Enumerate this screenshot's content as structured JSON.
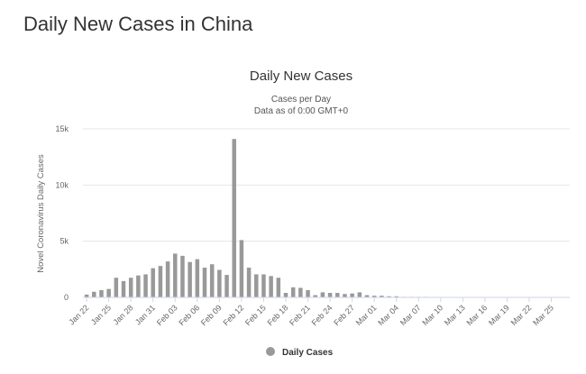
{
  "page": {
    "heading": "Daily New Cases in China"
  },
  "chart_data": {
    "type": "bar",
    "title": "Daily New Cases",
    "subtitle": [
      "Cases per Day",
      "Data as of 0:00 GMT+0"
    ],
    "xlabel": "",
    "ylabel": "Novel Coronavirus Daily Cases",
    "ylim": [
      0,
      15000
    ],
    "yticks": [
      0,
      5000,
      10000,
      15000
    ],
    "ytick_labels": [
      "0",
      "5k",
      "10k",
      "15k"
    ],
    "grid": true,
    "legend": {
      "placement": "bottom-center"
    },
    "x_tick_labels": [
      "Jan 22",
      "Jan 25",
      "Jan 28",
      "Jan 31",
      "Feb 03",
      "Feb 06",
      "Feb 09",
      "Feb 12",
      "Feb 15",
      "Feb 18",
      "Feb 21",
      "Feb 24",
      "Feb 27",
      "Mar 01",
      "Mar 04",
      "Mar 07",
      "Mar 10",
      "Mar 13",
      "Mar 16",
      "Mar 19",
      "Mar 22",
      "Mar 25"
    ],
    "categories": [
      "Jan 22",
      "Jan 23",
      "Jan 24",
      "Jan 25",
      "Jan 26",
      "Jan 27",
      "Jan 28",
      "Jan 29",
      "Jan 30",
      "Jan 31",
      "Feb 01",
      "Feb 02",
      "Feb 03",
      "Feb 04",
      "Feb 05",
      "Feb 06",
      "Feb 07",
      "Feb 08",
      "Feb 09",
      "Feb 10",
      "Feb 11",
      "Feb 12",
      "Feb 13",
      "Feb 14",
      "Feb 15",
      "Feb 16",
      "Feb 17",
      "Feb 18",
      "Feb 19",
      "Feb 20",
      "Feb 21",
      "Feb 22",
      "Feb 23",
      "Feb 24",
      "Feb 25",
      "Feb 26",
      "Feb 27",
      "Feb 28",
      "Feb 29",
      "Mar 01",
      "Mar 02",
      "Mar 03",
      "Mar 04",
      "Mar 05",
      "Mar 06",
      "Mar 07",
      "Mar 08",
      "Mar 09",
      "Mar 10",
      "Mar 11",
      "Mar 12",
      "Mar 13",
      "Mar 14",
      "Mar 15",
      "Mar 16",
      "Mar 17",
      "Mar 18",
      "Mar 19",
      "Mar 20",
      "Mar 21",
      "Mar 22",
      "Mar 23",
      "Mar 24",
      "Mar 25",
      "Mar 26",
      "Mar 27"
    ],
    "series": [
      {
        "name": "Daily Cases",
        "color": "#999999",
        "values": [
          250,
          500,
          650,
          750,
          1750,
          1450,
          1750,
          1950,
          2050,
          2600,
          2800,
          3200,
          3900,
          3700,
          3150,
          3400,
          2650,
          2950,
          2450,
          2000,
          14100,
          5100,
          2650,
          2050,
          2050,
          1900,
          1750,
          400,
          900,
          850,
          650,
          200,
          450,
          400,
          400,
          300,
          350,
          450,
          200,
          150,
          150,
          100,
          100,
          50,
          50,
          50,
          50,
          40,
          30,
          20,
          20,
          20,
          20,
          20,
          20,
          20,
          20,
          20,
          20,
          20,
          20,
          20,
          20,
          20,
          20,
          20
        ]
      }
    ]
  }
}
